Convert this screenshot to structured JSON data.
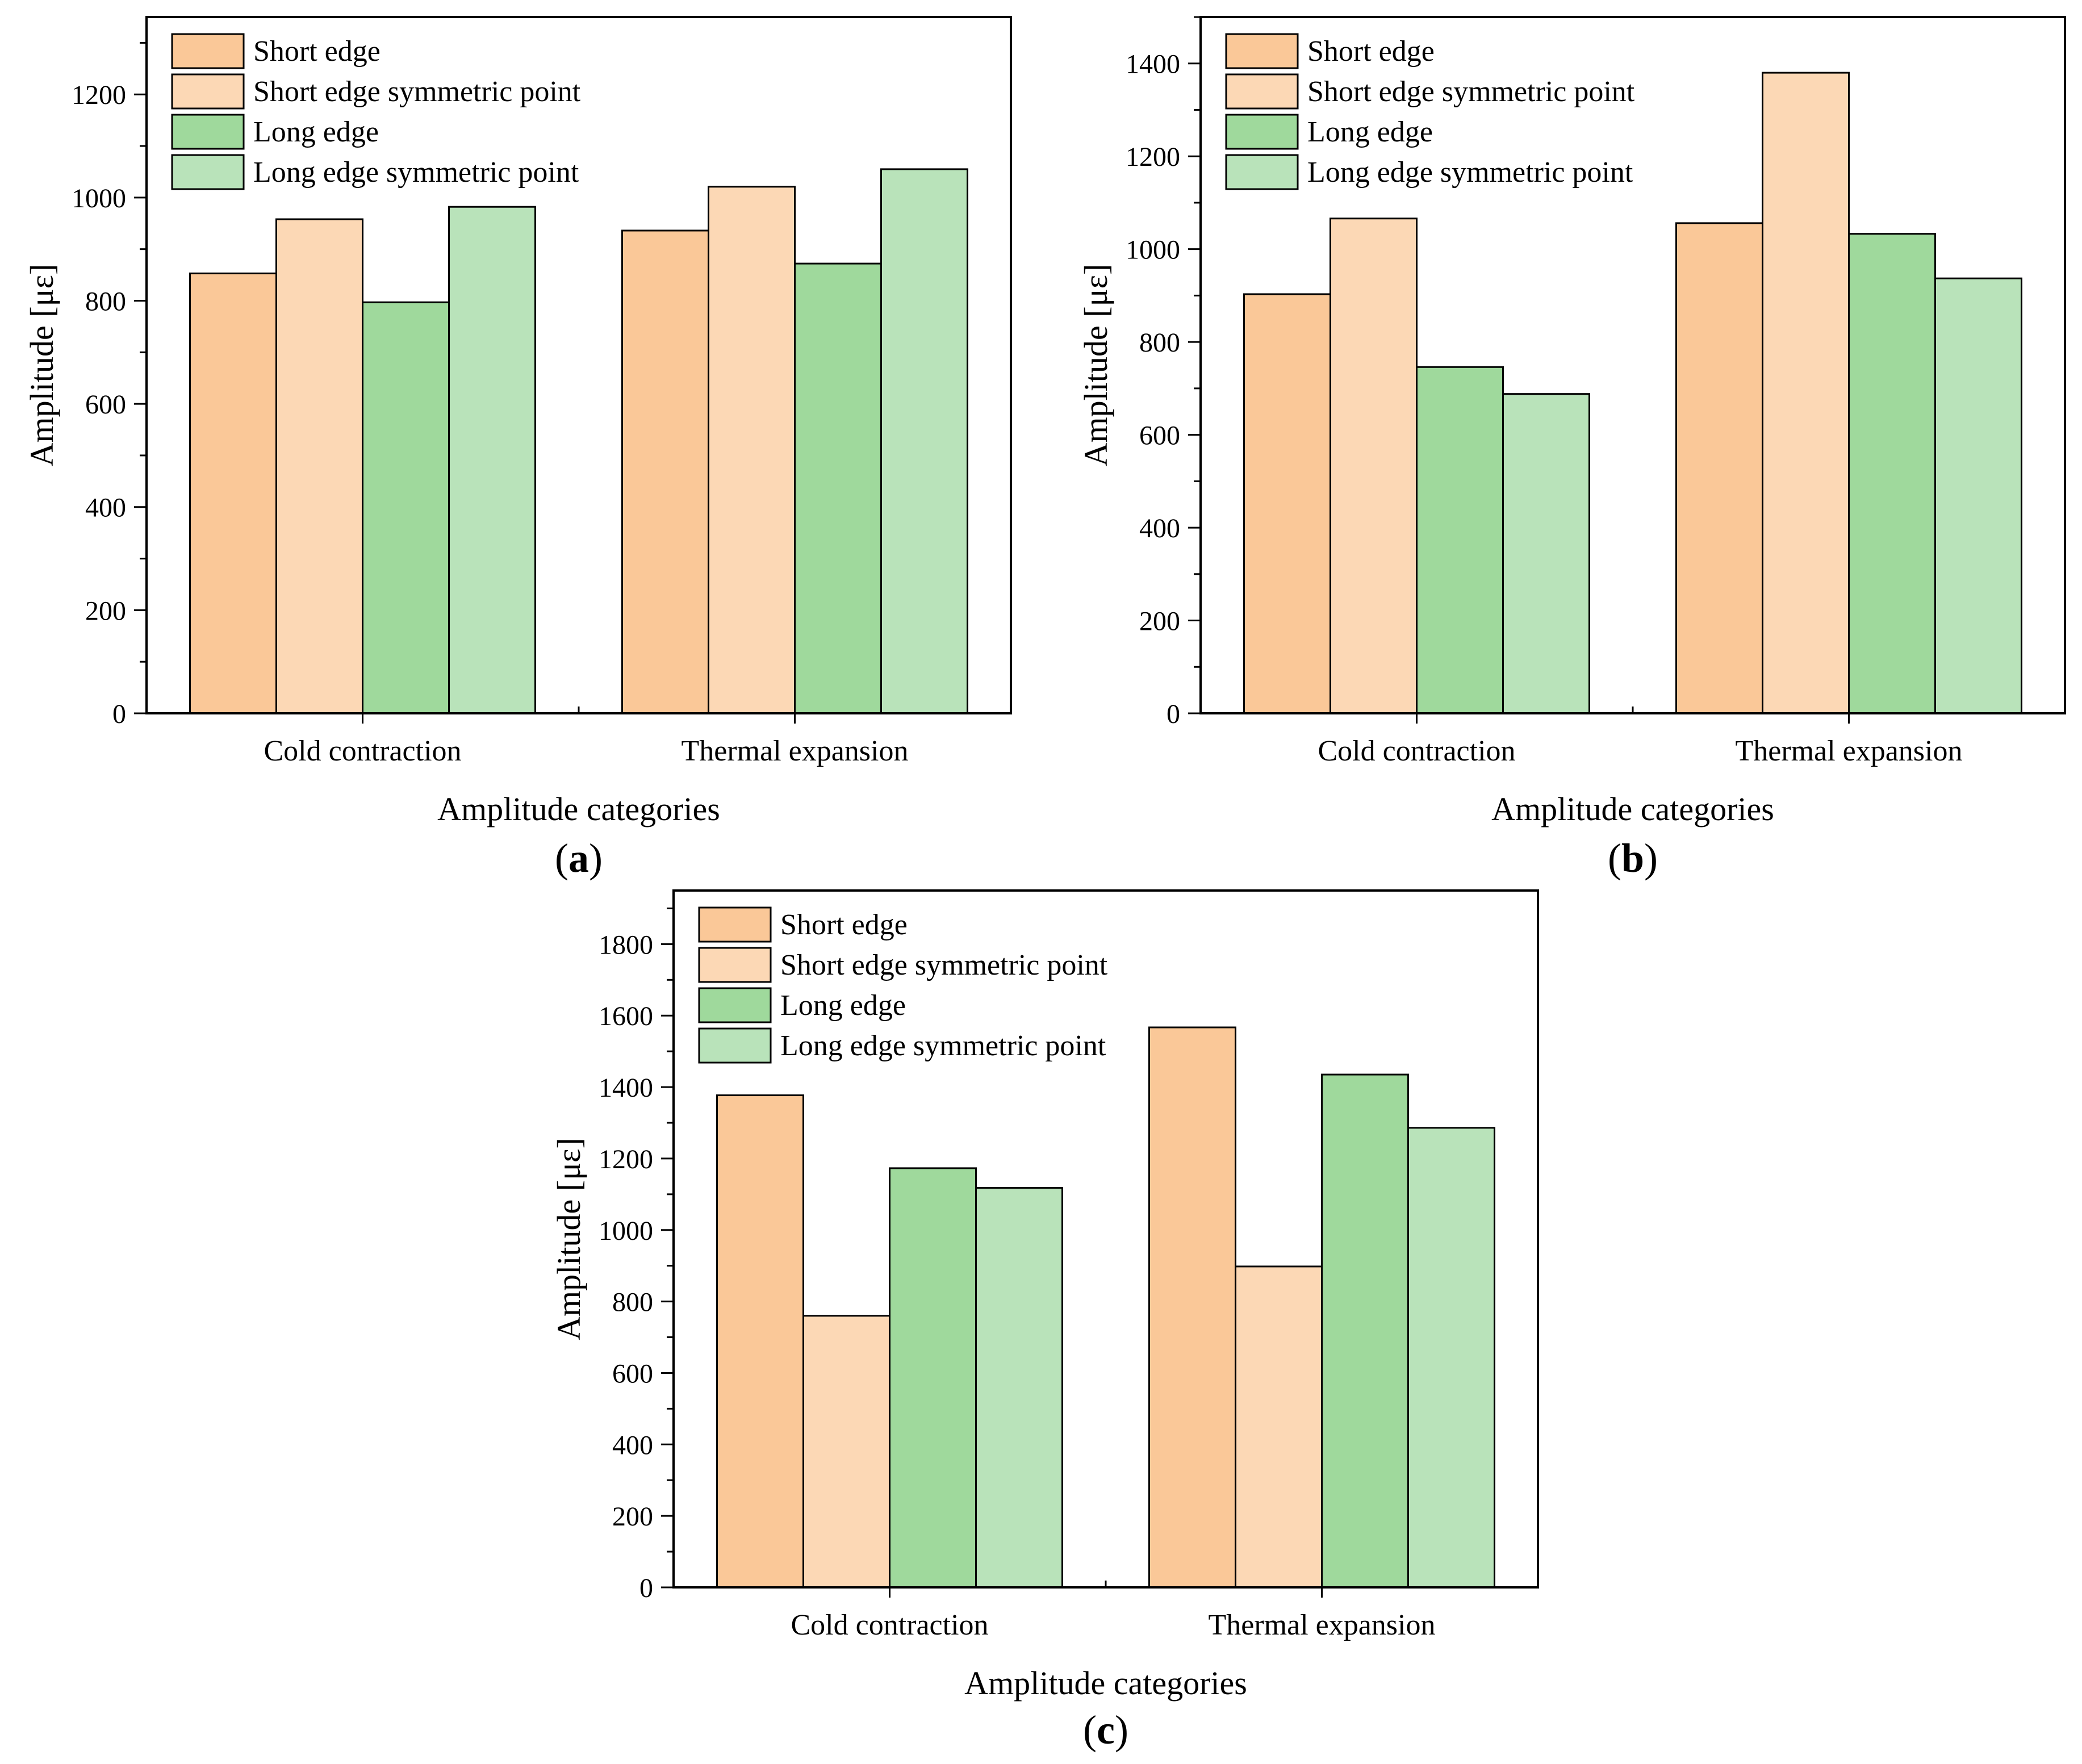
{
  "colors": {
    "short_edge": "#FAC898",
    "short_edge_symmetric_point": "#FCD8B5",
    "long_edge": "#9FD99C",
    "long_edge_symmetric_point": "#B9E3BA",
    "axis": "#000000"
  },
  "chart_data": [
    {
      "type": "bar",
      "panel_label": "a",
      "categories": [
        "Cold contraction",
        "Thermal expansion"
      ],
      "series": [
        {
          "name": "Short edge",
          "values": [
            853,
            936
          ]
        },
        {
          "name": "Short edge symmetric point",
          "values": [
            958,
            1021
          ]
        },
        {
          "name": "Long edge",
          "values": [
            797,
            872
          ]
        },
        {
          "name": "Long edge symmetric point",
          "values": [
            982,
            1055
          ]
        }
      ],
      "xlabel": "Amplitude categories",
      "ylabel": "Amplitude [με]",
      "ylim": [
        0,
        1350
      ],
      "yticks": [
        0,
        200,
        400,
        600,
        800,
        1000,
        1200
      ],
      "legend_position": "top-left",
      "grid": false
    },
    {
      "type": "bar",
      "panel_label": "b",
      "categories": [
        "Cold contraction",
        "Thermal expansion"
      ],
      "series": [
        {
          "name": "Short edge",
          "values": [
            903,
            1056
          ]
        },
        {
          "name": "Short edge symmetric point",
          "values": [
            1066,
            1380
          ]
        },
        {
          "name": "Long edge",
          "values": [
            746,
            1033
          ]
        },
        {
          "name": "Long edge symmetric point",
          "values": [
            688,
            937
          ]
        }
      ],
      "xlabel": "Amplitude categories",
      "ylabel": "Amplitude [με]",
      "ylim": [
        0,
        1500
      ],
      "yticks": [
        0,
        200,
        400,
        600,
        800,
        1000,
        1200,
        1400
      ],
      "legend_position": "top-left",
      "grid": false
    },
    {
      "type": "bar",
      "panel_label": "c",
      "categories": [
        "Cold contraction",
        "Thermal expansion"
      ],
      "series": [
        {
          "name": "Short edge",
          "values": [
            1377,
            1567
          ]
        },
        {
          "name": "Short edge symmetric point",
          "values": [
            760,
            898
          ]
        },
        {
          "name": "Long edge",
          "values": [
            1173,
            1435
          ]
        },
        {
          "name": "Long edge symmetric point",
          "values": [
            1118,
            1286
          ]
        }
      ],
      "xlabel": "Amplitude categories",
      "ylabel": "Amplitude [με]",
      "ylim": [
        0,
        1950
      ],
      "yticks": [
        0,
        200,
        400,
        600,
        800,
        1000,
        1200,
        1400,
        1600,
        1800
      ],
      "legend_position": "top-left",
      "grid": false
    }
  ]
}
